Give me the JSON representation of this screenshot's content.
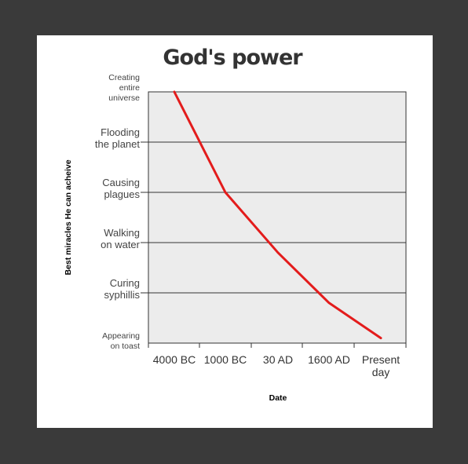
{
  "chart_data": {
    "type": "line",
    "title": "God's power",
    "xlabel": "Date",
    "ylabel": "Best miracles He can acheive",
    "categories": [
      "4000 BC",
      "1000 BC",
      "30 AD",
      "1600 AD",
      "Present day"
    ],
    "y_categories": [
      "Appearing on toast",
      "Curing syphillis",
      "Walking on water",
      "Causing plagues",
      "Flooding the planet",
      "Creating entire universe"
    ],
    "series": [
      {
        "color": "#e31c1c",
        "points": [
          {
            "x": 0,
            "y": 5.0
          },
          {
            "x": 1,
            "y": 3.0
          },
          {
            "x": 2,
            "y": 1.8
          },
          {
            "x": 3,
            "y": 0.8
          },
          {
            "x": 4,
            "y": 0.1
          }
        ]
      }
    ],
    "grid": "horizontal",
    "background": "#ececec",
    "line_color": "#e31c1c"
  }
}
